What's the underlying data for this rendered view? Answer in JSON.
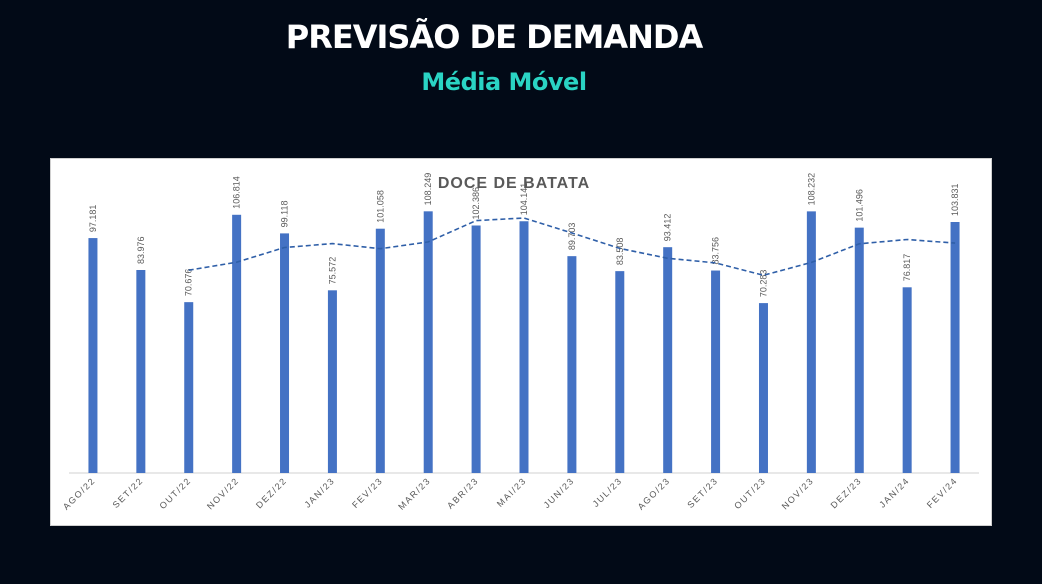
{
  "header": {
    "title": "PREVISÃO DE DEMANDA",
    "subtitle": "Média Móvel"
  },
  "colors": {
    "background": "#020a17",
    "subtitle": "#2ad4c4",
    "bar": "#4472c4",
    "line": "#2f5fa8"
  },
  "chart_data": {
    "type": "bar",
    "title": "DOCE DE BATATA",
    "categories": [
      "AGO/22",
      "SET/22",
      "OUT/22",
      "NOV/22",
      "DEZ/22",
      "JAN/23",
      "FEV/23",
      "MAR/23",
      "ABR/23",
      "MAI/23",
      "JUN/23",
      "JUL/23",
      "AGO/23",
      "SET/23",
      "OUT/23",
      "NOV/23",
      "DEZ/23",
      "JAN/24",
      "FEV/24"
    ],
    "series": [
      {
        "type": "bar",
        "values": [
          97181,
          83976,
          70676,
          106814,
          99118,
          75572,
          101058,
          108249,
          102386,
          104141,
          89703,
          83508,
          93412,
          83756,
          70283,
          108232,
          101496,
          76817,
          103831
        ],
        "labels": [
          "97.181",
          "83.976",
          "70.676",
          "106.814",
          "99.118",
          "75.572",
          "101.058",
          "108.249",
          "102.386",
          "104.141",
          "89.703",
          "83.508",
          "93.412",
          "83.756",
          "70.283",
          "108.232",
          "101.496",
          "76.817",
          "103.831"
        ]
      },
      {
        "type": "line",
        "style": "dashed",
        "values": [
          null,
          null,
          83900,
          87200,
          93300,
          94900,
          92800,
          95600,
          104400,
          105500,
          99300,
          92900,
          88800,
          86900,
          81800,
          87100,
          94800,
          96600,
          95100
        ]
      }
    ],
    "ylim": [
      0,
      115000
    ],
    "grid": false,
    "legend": "none"
  }
}
